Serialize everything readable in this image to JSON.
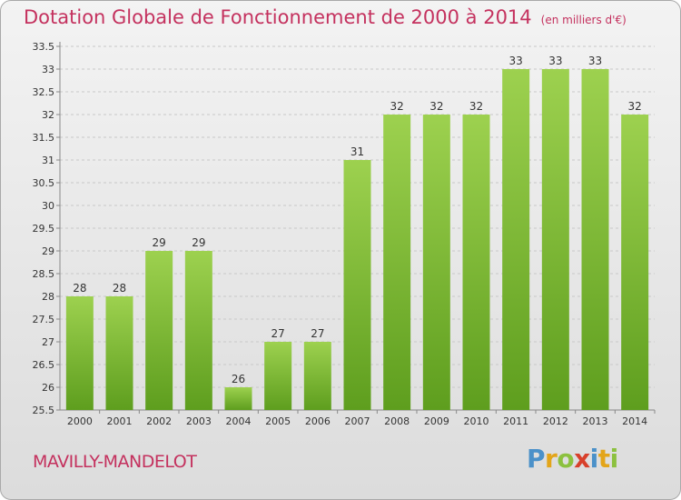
{
  "title": "Dotation Globale de Fonctionnement de 2000 à 2014",
  "subtitle": "(en milliers d'€)",
  "commune": "MAVILLY-MANDELOT",
  "logo_text": "Proxiti",
  "colors": {
    "title": "#c4315e",
    "bar_top": "#9dd14f",
    "bar_bottom": "#5e9e1e"
  },
  "chart_data": {
    "type": "bar",
    "categories": [
      "2000",
      "2001",
      "2002",
      "2003",
      "2004",
      "2005",
      "2006",
      "2007",
      "2008",
      "2009",
      "2010",
      "2011",
      "2012",
      "2013",
      "2014"
    ],
    "values": [
      28,
      28,
      29,
      29,
      26,
      27,
      27,
      31,
      32,
      32,
      32,
      33,
      33,
      33,
      32
    ],
    "ylim": [
      25.5,
      33.5
    ],
    "yticks": [
      "25.5",
      "26",
      "26.5",
      "27",
      "27.5",
      "28",
      "28.5",
      "29",
      "29.5",
      "30",
      "30.5",
      "31",
      "31.5",
      "32",
      "32.5",
      "33",
      "33.5"
    ],
    "grid": true
  }
}
